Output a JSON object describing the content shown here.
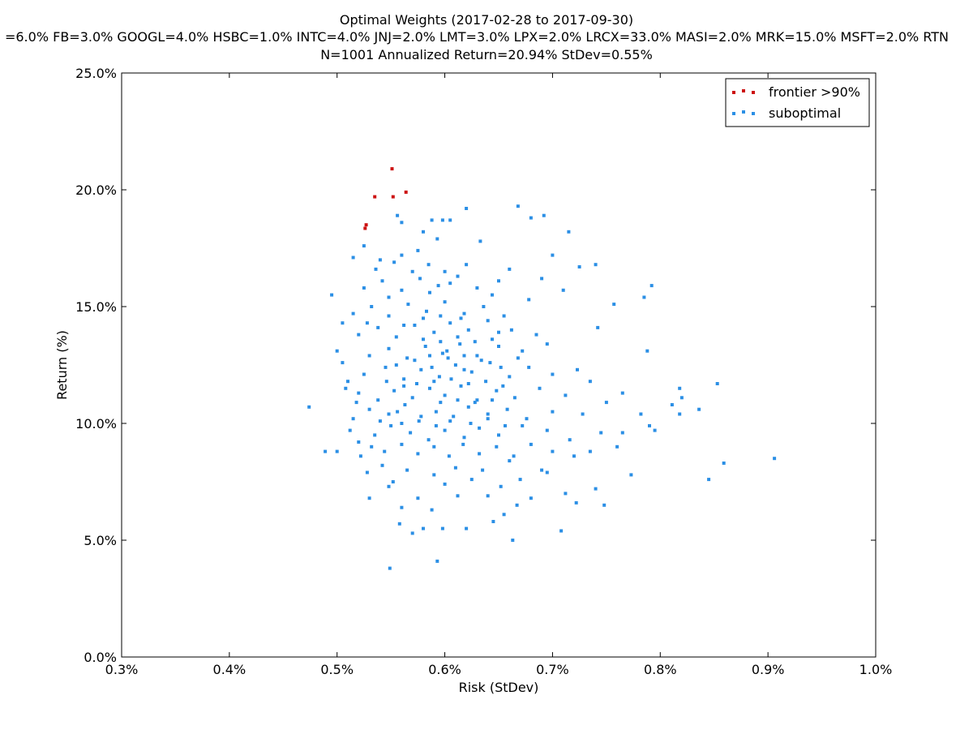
{
  "chart_data": {
    "type": "scatter",
    "title": "Optimal Weights  (2017-02-28 to 2017-09-30)",
    "subtitle": "=6.0% FB=3.0% GOOGL=4.0% HSBC=1.0% INTC=4.0% JNJ=2.0% LMT=3.0% LPX=2.0% LRCX=33.0% MASI=2.0% MRK=15.0% MSFT=2.0% RTN",
    "summary": "N=1001   Annualized Return=20.94%   StDev=0.55%",
    "xlabel": "Risk (StDev)",
    "ylabel": "Return (%)",
    "xlim": [
      0.3,
      1.0
    ],
    "ylim": [
      0.0,
      25.0
    ],
    "xticks": [
      0.3,
      0.4,
      0.5,
      0.6,
      0.7,
      0.8,
      0.9,
      1.0
    ],
    "yticks": [
      0.0,
      5.0,
      10.0,
      15.0,
      20.0,
      25.0
    ],
    "xtick_labels": [
      "0.3%",
      "0.4%",
      "0.5%",
      "0.6%",
      "0.7%",
      "0.8%",
      "0.9%",
      "1.0%"
    ],
    "ytick_labels": [
      "0.0%",
      "5.0%",
      "10.0%",
      "15.0%",
      "20.0%",
      "25.0%"
    ],
    "grid": false,
    "legend_position": "top-right",
    "series": [
      {
        "name": "frontier >90%",
        "color": "#cc1111",
        "points": [
          [
            0.551,
            20.9
          ],
          [
            0.564,
            19.9
          ],
          [
            0.535,
            19.7
          ],
          [
            0.552,
            19.7
          ],
          [
            0.527,
            18.5
          ],
          [
            0.526,
            18.35
          ]
        ]
      },
      {
        "name": "suboptimal",
        "color": "#2b8fe5",
        "sample_note": "representative sample of ~1000 points",
        "points": [
          [
            0.575,
            17.4
          ],
          [
            0.598,
            18.7
          ],
          [
            0.62,
            19.2
          ],
          [
            0.668,
            19.3
          ],
          [
            0.68,
            18.8
          ],
          [
            0.692,
            18.9
          ],
          [
            0.715,
            18.2
          ],
          [
            0.633,
            17.8
          ],
          [
            0.605,
            18.7
          ],
          [
            0.588,
            18.7
          ],
          [
            0.556,
            18.9
          ],
          [
            0.56,
            18.6
          ],
          [
            0.58,
            18.2
          ],
          [
            0.593,
            17.9
          ],
          [
            0.525,
            17.6
          ],
          [
            0.515,
            17.1
          ],
          [
            0.54,
            17.0
          ],
          [
            0.56,
            17.2
          ],
          [
            0.585,
            16.8
          ],
          [
            0.6,
            16.5
          ],
          [
            0.66,
            16.6
          ],
          [
            0.7,
            17.2
          ],
          [
            0.725,
            16.7
          ],
          [
            0.74,
            16.8
          ],
          [
            0.71,
            15.7
          ],
          [
            0.757,
            15.1
          ],
          [
            0.792,
            15.9
          ],
          [
            0.785,
            15.4
          ],
          [
            0.495,
            15.5
          ],
          [
            0.505,
            14.3
          ],
          [
            0.742,
            14.1
          ],
          [
            0.788,
            13.1
          ],
          [
            0.5,
            13.1
          ],
          [
            0.853,
            11.7
          ],
          [
            0.818,
            11.5
          ],
          [
            0.82,
            11.1
          ],
          [
            0.811,
            10.8
          ],
          [
            0.836,
            10.6
          ],
          [
            0.818,
            10.4
          ],
          [
            0.474,
            10.7
          ],
          [
            0.79,
            9.9
          ],
          [
            0.795,
            9.7
          ],
          [
            0.489,
            8.8
          ],
          [
            0.5,
            8.8
          ],
          [
            0.773,
            7.8
          ],
          [
            0.845,
            7.6
          ],
          [
            0.859,
            8.3
          ],
          [
            0.906,
            8.5
          ],
          [
            0.748,
            6.5
          ],
          [
            0.722,
            6.6
          ],
          [
            0.708,
            5.4
          ],
          [
            0.663,
            5.0
          ],
          [
            0.593,
            4.1
          ],
          [
            0.549,
            3.8
          ],
          [
            0.558,
            5.7
          ],
          [
            0.57,
            5.3
          ],
          [
            0.58,
            5.5
          ],
          [
            0.598,
            5.5
          ],
          [
            0.62,
            5.5
          ],
          [
            0.645,
            5.8
          ],
          [
            0.655,
            6.1
          ],
          [
            0.667,
            6.5
          ],
          [
            0.53,
            6.8
          ],
          [
            0.548,
            7.3
          ],
          [
            0.575,
            6.8
          ],
          [
            0.612,
            6.9
          ],
          [
            0.64,
            6.9
          ],
          [
            0.68,
            6.8
          ],
          [
            0.712,
            7.0
          ],
          [
            0.74,
            7.2
          ],
          [
            0.528,
            7.9
          ],
          [
            0.542,
            8.2
          ],
          [
            0.552,
            7.5
          ],
          [
            0.565,
            8.0
          ],
          [
            0.59,
            7.8
          ],
          [
            0.61,
            8.1
          ],
          [
            0.635,
            8.0
          ],
          [
            0.66,
            8.4
          ],
          [
            0.69,
            8.0
          ],
          [
            0.72,
            8.6
          ],
          [
            0.735,
            8.8
          ],
          [
            0.76,
            9.0
          ],
          [
            0.512,
            9.7
          ],
          [
            0.52,
            9.2
          ],
          [
            0.535,
            9.5
          ],
          [
            0.55,
            9.9
          ],
          [
            0.568,
            9.6
          ],
          [
            0.585,
            9.3
          ],
          [
            0.6,
            9.7
          ],
          [
            0.618,
            9.4
          ],
          [
            0.632,
            9.8
          ],
          [
            0.65,
            9.5
          ],
          [
            0.672,
            9.9
          ],
          [
            0.695,
            9.7
          ],
          [
            0.716,
            9.3
          ],
          [
            0.745,
            9.6
          ],
          [
            0.765,
            9.6
          ],
          [
            0.515,
            10.2
          ],
          [
            0.53,
            10.6
          ],
          [
            0.548,
            10.4
          ],
          [
            0.563,
            10.8
          ],
          [
            0.578,
            10.3
          ],
          [
            0.592,
            10.5
          ],
          [
            0.605,
            10.1
          ],
          [
            0.622,
            10.7
          ],
          [
            0.64,
            10.4
          ],
          [
            0.658,
            10.6
          ],
          [
            0.676,
            10.2
          ],
          [
            0.7,
            10.5
          ],
          [
            0.728,
            10.4
          ],
          [
            0.75,
            10.9
          ],
          [
            0.782,
            10.4
          ],
          [
            0.52,
            11.3
          ],
          [
            0.538,
            11.0
          ],
          [
            0.553,
            11.4
          ],
          [
            0.57,
            11.1
          ],
          [
            0.586,
            11.5
          ],
          [
            0.6,
            11.2
          ],
          [
            0.615,
            11.6
          ],
          [
            0.63,
            11.0
          ],
          [
            0.648,
            11.4
          ],
          [
            0.665,
            11.1
          ],
          [
            0.688,
            11.5
          ],
          [
            0.712,
            11.2
          ],
          [
            0.735,
            11.8
          ],
          [
            0.765,
            11.3
          ],
          [
            0.51,
            11.8
          ],
          [
            0.525,
            12.1
          ],
          [
            0.545,
            12.4
          ],
          [
            0.562,
            11.9
          ],
          [
            0.578,
            12.3
          ],
          [
            0.595,
            12.0
          ],
          [
            0.61,
            12.5
          ],
          [
            0.625,
            12.2
          ],
          [
            0.642,
            12.6
          ],
          [
            0.66,
            12.0
          ],
          [
            0.678,
            12.4
          ],
          [
            0.7,
            12.1
          ],
          [
            0.723,
            12.3
          ],
          [
            0.53,
            12.9
          ],
          [
            0.548,
            13.2
          ],
          [
            0.565,
            12.8
          ],
          [
            0.582,
            13.3
          ],
          [
            0.598,
            13.0
          ],
          [
            0.614,
            13.4
          ],
          [
            0.63,
            12.9
          ],
          [
            0.65,
            13.3
          ],
          [
            0.672,
            13.1
          ],
          [
            0.695,
            13.4
          ],
          [
            0.52,
            13.8
          ],
          [
            0.538,
            14.1
          ],
          [
            0.555,
            13.7
          ],
          [
            0.572,
            14.2
          ],
          [
            0.59,
            13.9
          ],
          [
            0.605,
            14.3
          ],
          [
            0.622,
            14.0
          ],
          [
            0.64,
            14.4
          ],
          [
            0.662,
            14.0
          ],
          [
            0.685,
            13.8
          ],
          [
            0.515,
            14.7
          ],
          [
            0.532,
            15.0
          ],
          [
            0.548,
            14.6
          ],
          [
            0.566,
            15.1
          ],
          [
            0.583,
            14.8
          ],
          [
            0.6,
            15.2
          ],
          [
            0.618,
            14.7
          ],
          [
            0.636,
            15.0
          ],
          [
            0.655,
            14.6
          ],
          [
            0.678,
            15.3
          ],
          [
            0.525,
            15.8
          ],
          [
            0.542,
            16.1
          ],
          [
            0.56,
            15.7
          ],
          [
            0.577,
            16.2
          ],
          [
            0.594,
            15.9
          ],
          [
            0.612,
            16.3
          ],
          [
            0.63,
            15.8
          ],
          [
            0.65,
            16.1
          ],
          [
            0.69,
            16.2
          ],
          [
            0.536,
            16.6
          ],
          [
            0.553,
            16.9
          ],
          [
            0.57,
            16.5
          ],
          [
            0.62,
            16.8
          ],
          [
            0.505,
            12.6
          ],
          [
            0.508,
            11.5
          ],
          [
            0.518,
            10.9
          ],
          [
            0.522,
            8.6
          ],
          [
            0.532,
            9.0
          ],
          [
            0.544,
            8.8
          ],
          [
            0.56,
            9.1
          ],
          [
            0.575,
            8.7
          ],
          [
            0.59,
            9.0
          ],
          [
            0.604,
            8.6
          ],
          [
            0.617,
            9.1
          ],
          [
            0.632,
            8.7
          ],
          [
            0.648,
            9.0
          ],
          [
            0.664,
            8.6
          ],
          [
            0.68,
            9.1
          ],
          [
            0.7,
            8.8
          ],
          [
            0.555,
            12.5
          ],
          [
            0.572,
            12.7
          ],
          [
            0.588,
            12.4
          ],
          [
            0.603,
            12.8
          ],
          [
            0.618,
            12.3
          ],
          [
            0.634,
            12.7
          ],
          [
            0.652,
            12.4
          ],
          [
            0.668,
            12.8
          ],
          [
            0.56,
            10.0
          ],
          [
            0.576,
            10.1
          ],
          [
            0.592,
            9.9
          ],
          [
            0.608,
            10.3
          ],
          [
            0.624,
            10.0
          ],
          [
            0.64,
            10.2
          ],
          [
            0.656,
            9.9
          ],
          [
            0.574,
            11.7
          ],
          [
            0.59,
            11.8
          ],
          [
            0.606,
            11.9
          ],
          [
            0.622,
            11.7
          ],
          [
            0.638,
            11.8
          ],
          [
            0.654,
            11.6
          ],
          [
            0.596,
            10.9
          ],
          [
            0.612,
            11.0
          ],
          [
            0.628,
            10.9
          ],
          [
            0.644,
            11.0
          ],
          [
            0.58,
            13.6
          ],
          [
            0.596,
            13.5
          ],
          [
            0.612,
            13.7
          ],
          [
            0.628,
            13.5
          ],
          [
            0.644,
            13.6
          ],
          [
            0.546,
            11.8
          ],
          [
            0.562,
            11.6
          ],
          [
            0.6,
            7.4
          ],
          [
            0.625,
            7.6
          ],
          [
            0.56,
            6.4
          ],
          [
            0.588,
            6.3
          ],
          [
            0.652,
            7.3
          ],
          [
            0.67,
            7.6
          ],
          [
            0.695,
            7.9
          ],
          [
            0.54,
            10.1
          ],
          [
            0.556,
            10.5
          ],
          [
            0.586,
            12.9
          ],
          [
            0.602,
            13.1
          ],
          [
            0.618,
            12.9
          ],
          [
            0.58,
            14.5
          ],
          [
            0.615,
            14.5
          ],
          [
            0.65,
            13.9
          ],
          [
            0.528,
            14.3
          ],
          [
            0.548,
            15.4
          ],
          [
            0.562,
            14.2
          ],
          [
            0.596,
            14.6
          ],
          [
            0.644,
            15.5
          ],
          [
            0.605,
            16.0
          ],
          [
            0.586,
            15.6
          ]
        ]
      }
    ]
  }
}
